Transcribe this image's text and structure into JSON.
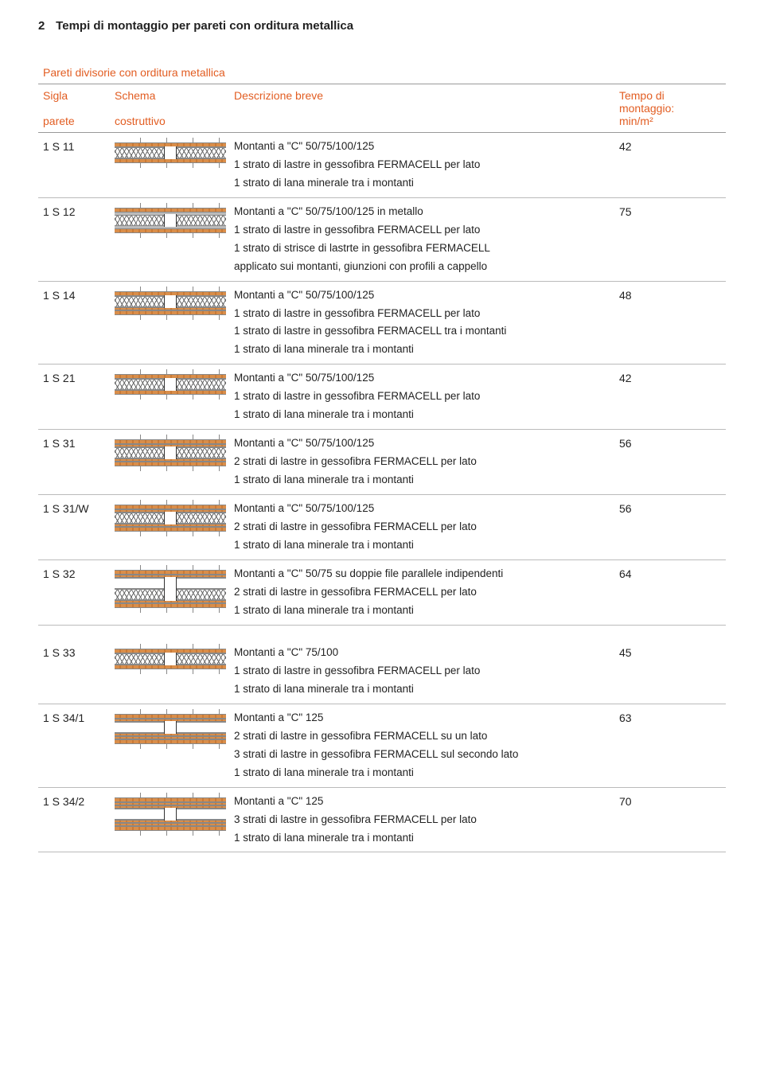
{
  "page": {
    "number": "2",
    "title": "Tempi di montaggio per pareti con orditura metallica"
  },
  "table": {
    "supertitle": "Pareti divisorie con orditura metallica",
    "headers": {
      "sigla1": "Sigla",
      "sigla2": "parete",
      "schema1": "Schema",
      "schema2": "costruttivo",
      "descr1": "Descrizione breve",
      "descr2": "",
      "tempo1": "Tempo di montaggio:",
      "tempo2": "min/m²"
    },
    "rows": [
      {
        "sigla": "1 S 11",
        "tempo": "42",
        "lines": [
          "Montanti a \"C\" 50/75/100/125",
          "1 strato di lastre in gessofibra FERMACELL per lato",
          "1 strato di lana minerale tra i montanti"
        ],
        "dia": [
          "dashes",
          "layer-brick",
          "layer-xx",
          "layer-brick",
          "dashes"
        ]
      },
      {
        "sigla": "1 S 12",
        "tempo": "75",
        "lines": [
          "Montanti a \"C\" 50/75/100/125 in metallo",
          "1 strato di lastre in gessofibra FERMACELL per lato",
          "1 strato di strisce di lastrte in gessofibra FERMACELL",
          "applicato sui montanti, giunzioni con profili a cappello"
        ],
        "dia": [
          "dashes",
          "layer-brick",
          "layer-grey",
          "layer-xx",
          "layer-grey",
          "layer-brick",
          "dashes"
        ]
      },
      {
        "sigla": "1 S 14",
        "tempo": "48",
        "lines": [
          "Montanti a \"C\" 50/75/100/125",
          "1 strato di lastre in gessofibra FERMACELL per lato",
          "1 strato di lastre in gessofibra FERMACELL tra i montanti",
          "1 strato di lana minerale tra i montanti"
        ],
        "dia": [
          "dashes",
          "layer-brick",
          "layer-xx",
          "layer-brick-thin",
          "layer-brick",
          "dashes"
        ]
      },
      {
        "sigla": "1 S 21",
        "tempo": "42",
        "lines": [
          "Montanti a \"C\" 50/75/100/125",
          "1 strato di lastre in gessofibra FERMACELL per lato",
          "1 strato di lana minerale tra i montanti"
        ],
        "dia": [
          "dashes",
          "layer-brick",
          "layer-xx",
          "layer-brick",
          "dashes"
        ]
      },
      {
        "sigla": "1 S 31",
        "tempo": "56",
        "lines": [
          "Montanti a \"C\" 50/75/100/125",
          "2 strati di lastre in gessofibra FERMACELL per lato",
          "1 strato di lana minerale tra i montanti"
        ],
        "dia": [
          "dashes",
          "layer-brick",
          "layer-brick-thin",
          "layer-xx",
          "layer-brick-thin",
          "layer-brick",
          "dashes"
        ]
      },
      {
        "sigla": "1 S 31/W",
        "tempo": "56",
        "lines": [
          "Montanti a \"C\" 50/75/100/125",
          "2 strati di lastre in gessofibra FERMACELL per lato",
          "1 strato di lana minerale tra i montanti"
        ],
        "dia": [
          "dashes",
          "layer-brick",
          "layer-brick-thin",
          "layer-xx",
          "layer-brick-thin",
          "layer-brick",
          "dashes"
        ]
      },
      {
        "sigla": "1 S 32",
        "tempo": "64",
        "lines": [
          "Montanti a \"C\" 50/75 su doppie file parallele indipendenti",
          "2 strati di lastre in gessofibra FERMACELL per lato",
          "1 strato di lana minerale tra i montanti"
        ],
        "dia": [
          "dashes",
          "layer-brick",
          "layer-brick-thin",
          "layer-blank",
          "layer-xx",
          "layer-brick-thin",
          "layer-brick",
          "dashes"
        ]
      }
    ],
    "rows2": [
      {
        "sigla": "1 S 33",
        "tempo": "45",
        "lines": [
          "Montanti a \"C\" 75/100",
          "1 strato di lastre in gessofibra FERMACELL per lato",
          "1 strato di lana minerale tra i montanti"
        ],
        "dia": [
          "dashes",
          "layer-brick",
          "layer-xx",
          "layer-brick",
          "dashes"
        ]
      },
      {
        "sigla": "1 S 34/1",
        "tempo": "63",
        "lines": [
          "Montanti a \"C\" 125",
          "2 strati di lastre in gessofibra FERMACELL su un lato",
          "3 strati di lastre in gessofibra FERMACELL sul secondo lato",
          "1 strato di lana minerale tra i montanti"
        ],
        "dia": [
          "dashes",
          "layer-brick",
          "layer-brick-thin",
          "layer-blank",
          "layer-brick-thin",
          "layer-brick-thin",
          "layer-brick",
          "dashes"
        ]
      },
      {
        "sigla": "1 S 34/2",
        "tempo": "70",
        "lines": [
          "Montanti a \"C\" 125",
          "3 strati di lastre in gessofibra FERMACELL per lato",
          "1 strato di lana minerale tra i montanti"
        ],
        "dia": [
          "dashes",
          "layer-brick",
          "layer-brick-thin",
          "layer-brick-thin",
          "layer-blank",
          "layer-brick-thin",
          "layer-brick-thin",
          "layer-brick",
          "dashes"
        ]
      }
    ]
  },
  "colors": {
    "accent": "#e25d22",
    "rule": "#999999",
    "text": "#222222"
  }
}
